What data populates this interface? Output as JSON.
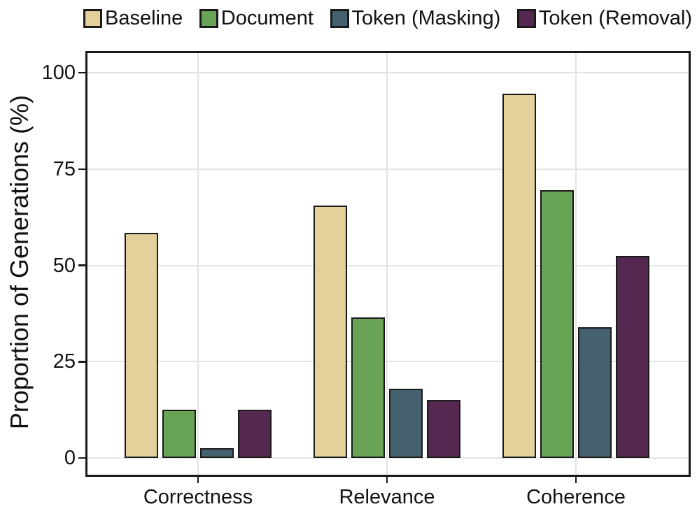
{
  "chart_data": {
    "type": "bar",
    "title": "",
    "xlabel": "",
    "ylabel": "Proportion of Generations (%)",
    "categories": [
      "Correctness",
      "Relevance",
      "Coherence"
    ],
    "series": [
      {
        "name": "Baseline",
        "color": "#e3d09a",
        "values": [
          58.5,
          65.5,
          94.5
        ]
      },
      {
        "name": "Document",
        "color": "#68a356",
        "values": [
          12.5,
          36.5,
          69.5
        ]
      },
      {
        "name": "Token (Masking)",
        "color": "#45606e",
        "values": [
          2.5,
          18,
          34
        ]
      },
      {
        "name": "Token (Removal)",
        "color": "#542850",
        "values": [
          12.5,
          15,
          52.5
        ]
      }
    ],
    "ylim": [
      0,
      100
    ],
    "yticks": [
      0,
      25,
      50,
      75,
      100
    ],
    "grid": true,
    "legend_position": "top",
    "bar_edge_color": "#1a1a1a",
    "panel_border_color": "#1a1a1a",
    "gridline_color": "#e4e4e4",
    "text_color": "#111111"
  }
}
